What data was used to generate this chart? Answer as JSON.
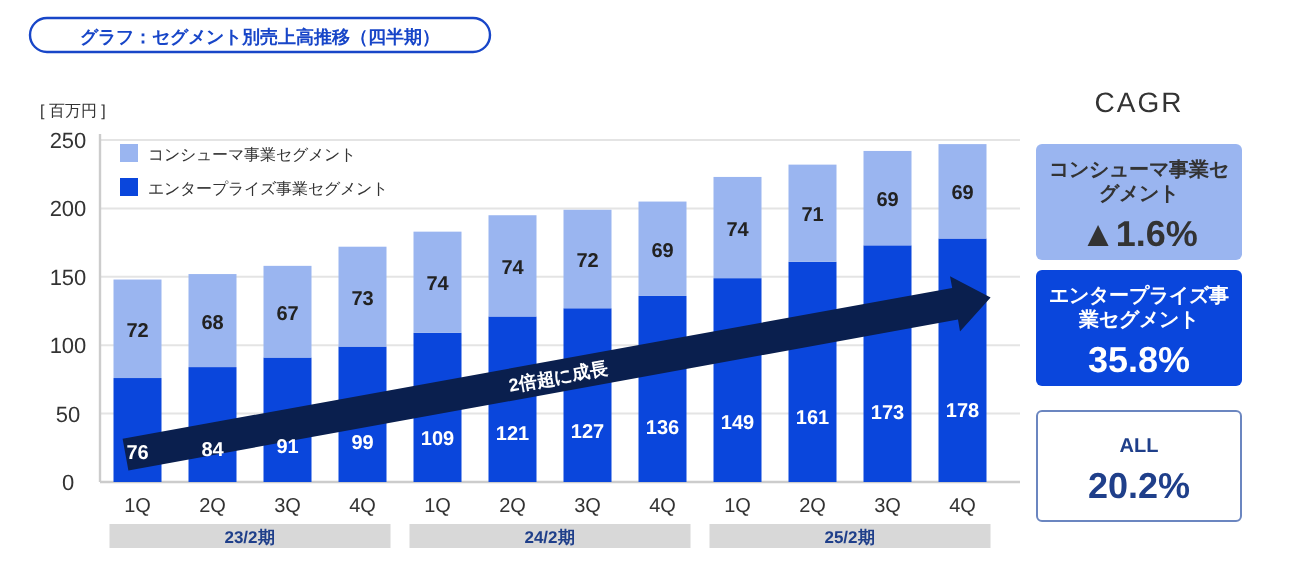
{
  "chart_data": [
    {
      "type": "bar",
      "title": "グラフ：セグメント別売上高推移（四半期）",
      "ylabel": "[ 百万円 ]",
      "categories": [
        "1Q",
        "2Q",
        "3Q",
        "4Q",
        "1Q",
        "2Q",
        "3Q",
        "4Q",
        "1Q",
        "2Q",
        "3Q",
        "4Q"
      ],
      "stacked": true,
      "series": [
        {
          "name": "エンタープライズ事業セグメント",
          "color": "#0a46dc",
          "values": [
            76,
            84,
            91,
            99,
            109,
            121,
            127,
            136,
            149,
            161,
            173,
            178
          ]
        },
        {
          "name": "コンシューマ事業セグメント",
          "color": "#9ab5f0",
          "values": [
            72,
            68,
            67,
            73,
            74,
            74,
            72,
            69,
            74,
            71,
            69,
            69
          ]
        }
      ],
      "ylim": [
        0,
        250
      ],
      "yticks": [
        0,
        50,
        100,
        150,
        200,
        250
      ],
      "grid": "y",
      "legend": "top left",
      "data_labels": true,
      "annotations": [
        "2倍超に成長",
        "23/2期",
        "24/2期",
        "25/2期"
      ]
    },
    {
      "type": "other",
      "title": "CAGR",
      "colors": [
        "#9ab5f0",
        "#0a46dc",
        "#ffffff"
      ],
      "annotations": [
        "コンシューマ事業セグメント",
        "▲1.6%",
        "エンタープライズ事業セグメント",
        "35.8%",
        "ALL",
        "20.2%"
      ]
    }
  ]
}
